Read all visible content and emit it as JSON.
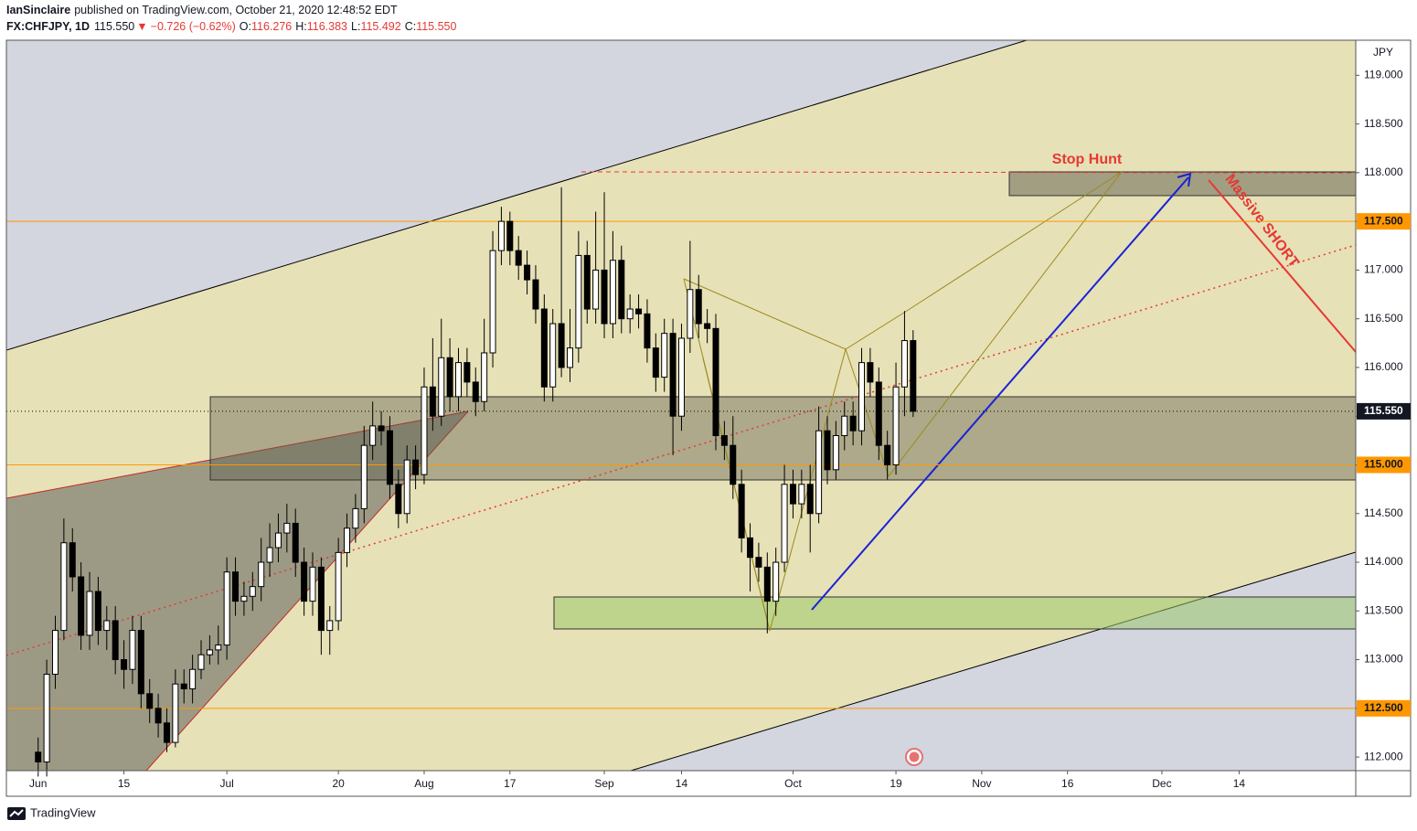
{
  "header": {
    "author": "IanSinclaire",
    "published": "published on TradingView.com, October 21, 2020 12:48:52 EDT",
    "symbol": "FX:CHFJPY, 1D",
    "last": "115.550",
    "arrow": "▼",
    "change": "−0.726 (−0.62%)",
    "ohlc": [
      {
        "label": "O:",
        "value": "116.276"
      },
      {
        "label": "H:",
        "value": "116.383"
      },
      {
        "label": "L:",
        "value": "115.492"
      },
      {
        "label": "C:",
        "value": "115.550"
      }
    ]
  },
  "chart_data": {
    "type": "candlestick",
    "currency": "JPY",
    "xlim": [
      -3.7,
      153.6
    ],
    "xticks": [
      {
        "value": 0,
        "label": "Jun"
      },
      {
        "value": 10,
        "label": "15"
      },
      {
        "value": 22,
        "label": "Jul"
      },
      {
        "value": 35,
        "label": "20"
      },
      {
        "value": 45,
        "label": "Aug"
      },
      {
        "value": 55,
        "label": "17"
      },
      {
        "value": 66,
        "label": "Sep"
      },
      {
        "value": 75,
        "label": "14"
      },
      {
        "value": 88,
        "label": "Oct"
      },
      {
        "value": 100,
        "label": "19"
      },
      {
        "value": 110,
        "label": "Nov"
      },
      {
        "value": 120,
        "label": "16"
      },
      {
        "value": 131,
        "label": "Dec"
      },
      {
        "value": 140,
        "label": "14"
      }
    ],
    "ylim": [
      111.86,
      119.36
    ],
    "yticks": [
      {
        "value": 112,
        "label": "112.000"
      },
      {
        "value": 112.5,
        "label": "112.500"
      },
      {
        "value": 113,
        "label": "113.000"
      },
      {
        "value": 113.5,
        "label": "113.500"
      },
      {
        "value": 114,
        "label": "114.000"
      },
      {
        "value": 114.5,
        "label": "114.500"
      },
      {
        "value": 115,
        "label": "115.000"
      },
      {
        "value": 115.5,
        "label": "115.500"
      },
      {
        "value": 116,
        "label": "116.000"
      },
      {
        "value": 116.5,
        "label": "116.500"
      },
      {
        "value": 117,
        "label": "117.000"
      },
      {
        "value": 117.5,
        "label": "117.500"
      },
      {
        "value": 118,
        "label": "118.000"
      },
      {
        "value": 118.5,
        "label": "118.500"
      },
      {
        "value": 119,
        "label": "119.000"
      }
    ],
    "open": [
      112.05,
      111.95,
      112.85,
      113.3,
      114.2,
      113.85,
      113.25,
      113.7,
      113.3,
      113.4,
      113.0,
      112.9,
      113.3,
      112.65,
      112.5,
      112.35,
      112.15,
      112.75,
      112.7,
      112.9,
      113.05,
      113.1,
      113.15,
      113.9,
      113.6,
      113.65,
      113.75,
      114.0,
      114.15,
      114.3,
      114.4,
      114.0,
      113.6,
      113.95,
      113.3,
      113.4,
      114.1,
      114.35,
      114.55,
      115.2,
      115.4,
      115.35,
      114.8,
      114.5,
      115.05,
      114.9,
      115.8,
      115.5,
      116.1,
      115.7,
      116.05,
      115.85,
      115.65,
      116.15,
      117.2,
      117.5,
      117.2,
      117.05,
      116.9,
      116.6,
      115.8,
      116.45,
      116.0,
      116.2,
      117.15,
      116.6,
      117.0,
      116.45,
      117.1,
      116.5,
      116.6,
      116.55,
      116.2,
      115.9,
      116.35,
      115.5,
      116.3,
      116.8,
      116.45,
      116.4,
      115.3,
      115.2,
      114.8,
      114.25,
      114.05,
      113.95,
      113.6,
      114.0,
      114.8,
      114.6,
      114.8,
      114.5,
      115.35,
      114.95,
      115.3,
      115.5,
      115.35,
      116.05,
      115.85,
      115.2,
      115.0,
      115.8,
      116.276
    ],
    "high": [
      112.2,
      113.0,
      113.45,
      114.45,
      114.35,
      114.0,
      113.9,
      113.85,
      113.55,
      113.55,
      113.2,
      113.45,
      113.45,
      112.8,
      112.65,
      112.5,
      112.9,
      112.9,
      113.05,
      113.2,
      113.25,
      113.35,
      114.05,
      114.05,
      113.8,
      113.9,
      114.25,
      114.4,
      114.5,
      114.6,
      114.55,
      114.15,
      114.1,
      114.05,
      113.55,
      114.25,
      114.5,
      114.7,
      115.4,
      115.65,
      115.55,
      115.5,
      114.95,
      115.2,
      115.2,
      116.0,
      116.3,
      116.5,
      116.3,
      116.2,
      116.2,
      116.0,
      116.5,
      117.4,
      117.65,
      117.6,
      117.35,
      117.2,
      117.05,
      116.75,
      116.6,
      117.85,
      116.6,
      117.4,
      117.3,
      117.6,
      117.8,
      117.4,
      117.25,
      116.75,
      116.75,
      116.7,
      116.35,
      116.5,
      116.5,
      116.45,
      117.3,
      116.95,
      116.6,
      116.55,
      115.45,
      115.5,
      114.95,
      114.4,
      114.2,
      114.1,
      114.15,
      115.0,
      114.95,
      114.95,
      115.0,
      115.6,
      115.5,
      115.45,
      115.65,
      115.65,
      116.2,
      116.2,
      116.0,
      115.35,
      116.05,
      116.58,
      116.383
    ],
    "low": [
      111.8,
      111.8,
      112.7,
      113.2,
      113.7,
      113.1,
      113.1,
      113.15,
      113.1,
      112.85,
      112.7,
      112.75,
      112.5,
      112.35,
      112.2,
      112.05,
      112.1,
      112.55,
      112.55,
      112.8,
      112.95,
      112.95,
      113.0,
      113.45,
      113.45,
      113.5,
      113.6,
      113.85,
      114.0,
      114.1,
      113.85,
      113.45,
      113.45,
      113.05,
      113.05,
      113.3,
      113.95,
      114.2,
      114.4,
      115.05,
      115.2,
      114.65,
      114.35,
      114.4,
      114.75,
      114.8,
      115.35,
      115.4,
      115.55,
      115.55,
      115.7,
      115.5,
      115.55,
      116.0,
      117.05,
      117.05,
      116.9,
      116.75,
      116.45,
      115.65,
      115.65,
      115.9,
      115.85,
      116.05,
      116.45,
      116.45,
      116.3,
      116.3,
      116.35,
      116.35,
      116.4,
      116.05,
      115.75,
      115.75,
      115.1,
      115.35,
      116.15,
      116.3,
      116.25,
      115.15,
      115.05,
      114.65,
      114.1,
      113.7,
      113.8,
      113.27,
      113.45,
      113.9,
      114.45,
      114.45,
      114.1,
      114.4,
      114.8,
      114.85,
      115.15,
      115.2,
      115.2,
      115.7,
      115.05,
      114.85,
      114.9,
      115.5,
      115.492
    ],
    "close": [
      111.95,
      112.85,
      113.3,
      114.2,
      113.85,
      113.25,
      113.7,
      113.3,
      113.4,
      113.0,
      112.9,
      113.3,
      112.65,
      112.5,
      112.35,
      112.15,
      112.75,
      112.7,
      112.9,
      113.05,
      113.1,
      113.15,
      113.9,
      113.6,
      113.65,
      113.75,
      114.0,
      114.15,
      114.3,
      114.4,
      114.0,
      113.6,
      113.95,
      113.3,
      113.4,
      114.1,
      114.35,
      114.55,
      115.2,
      115.4,
      115.35,
      114.8,
      114.5,
      115.05,
      114.9,
      115.8,
      115.5,
      116.1,
      115.7,
      116.05,
      115.85,
      115.65,
      116.15,
      117.2,
      117.5,
      117.2,
      117.05,
      116.9,
      116.6,
      115.8,
      116.45,
      116.0,
      116.2,
      117.15,
      116.6,
      117.0,
      116.45,
      117.1,
      116.5,
      116.6,
      116.55,
      116.2,
      115.9,
      116.35,
      115.5,
      116.3,
      116.8,
      116.45,
      116.4,
      115.3,
      115.2,
      114.8,
      114.25,
      114.05,
      113.95,
      113.6,
      114.0,
      114.8,
      114.6,
      114.8,
      114.5,
      115.35,
      114.95,
      115.3,
      115.5,
      115.35,
      116.05,
      115.85,
      115.2,
      115.0,
      115.8,
      116.276,
      115.55
    ],
    "up_color": "#ffffff",
    "down_color": "#000000",
    "last_price": {
      "value": 115.55,
      "label": "115.550"
    },
    "level_color": "#ff9800",
    "levels": [
      {
        "value": 117.5,
        "label": "117.500"
      },
      {
        "value": 115.0,
        "label": "115.000"
      },
      {
        "value": 112.5,
        "label": "112.500"
      }
    ],
    "annotations": [
      "Stop Hunt",
      "Massive SHORT"
    ]
  },
  "footer": {
    "brand": "TradingView"
  }
}
